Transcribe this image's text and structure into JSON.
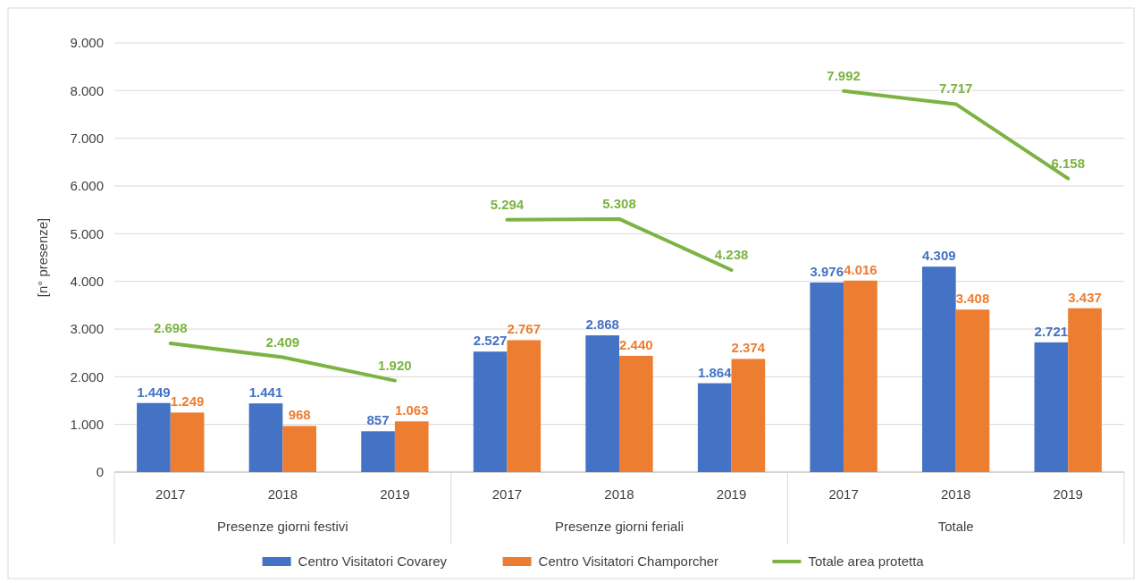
{
  "chart_data": {
    "type": "bar",
    "ylabel": "[n° presenze]",
    "categories": [
      "2017",
      "2018",
      "2019",
      "2017",
      "2018",
      "2019",
      "2017",
      "2018",
      "2019"
    ],
    "annotations": [
      "Presenze giorni festivi",
      "Presenze giorni feriali",
      "Totale"
    ],
    "series": [
      {
        "name": "Centro Visitatori Covarey",
        "color": "#4472c4",
        "values": [
          1449,
          1441,
          857,
          2527,
          2868,
          1864,
          3976,
          4309,
          2721
        ],
        "value_labels": [
          "1.449",
          "1.441",
          "857",
          "2.527",
          "2.868",
          "1.864",
          "3.976",
          "4.309",
          "2.721"
        ]
      },
      {
        "name": "Centro Visitatori Champorcher",
        "color": "#ed7d31",
        "values": [
          1249,
          968,
          1063,
          2767,
          2440,
          2374,
          4016,
          3408,
          3437
        ],
        "value_labels": [
          "1.249",
          "968",
          "1.063",
          "2.767",
          "2.440",
          "2.374",
          "4.016",
          "3.408",
          "3.437"
        ]
      },
      {
        "name": "Totale area protetta",
        "type": "line",
        "color": "#7cb342",
        "values": [
          2698,
          2409,
          1920,
          5294,
          5308,
          4238,
          7992,
          7717,
          6158
        ],
        "value_labels": [
          "2.698",
          "2.409",
          "1.920",
          "5.294",
          "5.308",
          "4.238",
          "7.992",
          "7.717",
          "6.158"
        ]
      }
    ],
    "ylim": [
      0,
      9000
    ],
    "yticks": [
      0,
      {
        "value": 1000,
        "label": "1.000"
      },
      {
        "value": 2000,
        "label": "2.000"
      },
      {
        "value": 3000,
        "label": "3.000"
      },
      {
        "value": 4000,
        "label": "4.000"
      },
      {
        "value": 5000,
        "label": "5.000"
      },
      {
        "value": 6000,
        "label": "6.000"
      },
      {
        "value": 7000,
        "label": "7.000"
      },
      {
        "value": 8000,
        "label": "8.000"
      },
      {
        "value": 9000,
        "label": "9.000"
      }
    ],
    "grid": "y",
    "legend": "bottom"
  }
}
